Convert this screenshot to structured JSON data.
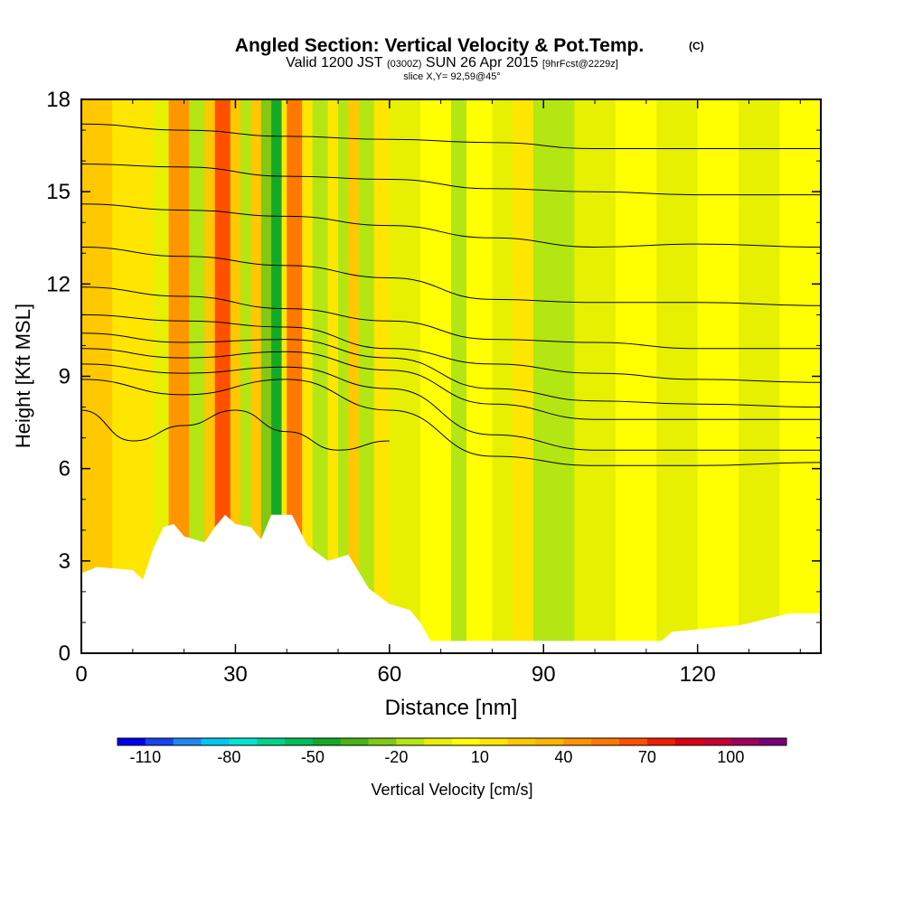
{
  "title": {
    "main": "Angled Section: Vertical Velocity & Pot.Temp.",
    "main_unit": "(C)",
    "valid_prefix": "Valid 1200 JST",
    "valid_utc": "(0300Z)",
    "valid_date": "SUN 26 Apr 2015",
    "forecast": "[9hrFcst@2229z]",
    "slice": "slice X,Y= 92,59@45°"
  },
  "chart_data": {
    "type": "heatmap",
    "xlabel": "Distance [nm]",
    "ylabel": "Height [Kft MSL]",
    "x_range": [
      0,
      144
    ],
    "y_range": [
      0,
      18
    ],
    "x_ticks": [
      0,
      30,
      60,
      90,
      120
    ],
    "y_ticks": [
      0,
      3,
      6,
      9,
      12,
      15,
      18
    ],
    "grid": false,
    "field": {
      "name": "Vertical Velocity",
      "bands": [
        {
          "x": [
            0,
            6
          ],
          "value": 25
        },
        {
          "x": [
            6,
            10
          ],
          "value": 15
        },
        {
          "x": [
            10,
            14
          ],
          "value": 10
        },
        {
          "x": [
            14,
            17
          ],
          "value": -10
        },
        {
          "x": [
            17,
            21
          ],
          "value": 45
        },
        {
          "x": [
            21,
            24
          ],
          "value": -20
        },
        {
          "x": [
            24,
            26
          ],
          "value": 20
        },
        {
          "x": [
            26,
            29
          ],
          "value": 65
        },
        {
          "x": [
            29,
            31
          ],
          "value": 20
        },
        {
          "x": [
            31,
            33
          ],
          "value": -20
        },
        {
          "x": [
            33,
            35
          ],
          "value": 20
        },
        {
          "x": [
            35,
            37
          ],
          "value": -30
        },
        {
          "x": [
            37,
            39
          ],
          "value": -45
        },
        {
          "x": [
            39,
            40
          ],
          "value": 10
        },
        {
          "x": [
            40,
            43
          ],
          "value": 50
        },
        {
          "x": [
            43,
            45
          ],
          "value": 10
        },
        {
          "x": [
            45,
            48
          ],
          "value": -20
        },
        {
          "x": [
            48,
            50
          ],
          "value": 15
        },
        {
          "x": [
            50,
            52
          ],
          "value": -20
        },
        {
          "x": [
            52,
            54
          ],
          "value": 25
        },
        {
          "x": [
            54,
            57
          ],
          "value": -20
        },
        {
          "x": [
            57,
            60
          ],
          "value": 10
        },
        {
          "x": [
            60,
            66
          ],
          "value": -10
        },
        {
          "x": [
            66,
            72
          ],
          "value": 0
        },
        {
          "x": [
            72,
            75
          ],
          "value": -20
        },
        {
          "x": [
            75,
            80
          ],
          "value": 0
        },
        {
          "x": [
            80,
            84
          ],
          "value": -10
        },
        {
          "x": [
            84,
            88
          ],
          "value": 10
        },
        {
          "x": [
            88,
            96
          ],
          "value": -15
        },
        {
          "x": [
            96,
            104
          ],
          "value": -5
        },
        {
          "x": [
            104,
            112
          ],
          "value": 5
        },
        {
          "x": [
            112,
            120
          ],
          "value": -5
        },
        {
          "x": [
            120,
            128
          ],
          "value": 5
        },
        {
          "x": [
            128,
            136
          ],
          "value": -5
        },
        {
          "x": [
            136,
            144
          ],
          "value": 0
        }
      ]
    },
    "contours": [
      {
        "label": "",
        "points": [
          [
            0,
            7.9
          ],
          [
            10,
            6.9
          ],
          [
            20,
            7.4
          ],
          [
            30,
            7.9
          ],
          [
            40,
            7.2
          ],
          [
            50,
            6.6
          ],
          [
            60,
            6.9
          ]
        ]
      },
      {
        "label": "",
        "points": [
          [
            0,
            8.9
          ],
          [
            20,
            8.4
          ],
          [
            40,
            8.9
          ],
          [
            60,
            7.9
          ],
          [
            80,
            6.4
          ],
          [
            100,
            6.1
          ],
          [
            120,
            6.1
          ],
          [
            144,
            6.2
          ]
        ]
      },
      {
        "label": "",
        "points": [
          [
            0,
            9.4
          ],
          [
            20,
            9.1
          ],
          [
            40,
            9.3
          ],
          [
            60,
            8.6
          ],
          [
            80,
            7.1
          ],
          [
            100,
            6.6
          ],
          [
            120,
            6.6
          ],
          [
            144,
            6.6
          ]
        ]
      },
      {
        "label": "",
        "points": [
          [
            0,
            9.9
          ],
          [
            20,
            9.6
          ],
          [
            40,
            9.8
          ],
          [
            60,
            9.2
          ],
          [
            80,
            8.1
          ],
          [
            100,
            7.6
          ],
          [
            120,
            7.6
          ],
          [
            144,
            7.6
          ]
        ]
      },
      {
        "label": "",
        "points": [
          [
            0,
            10.4
          ],
          [
            20,
            10.1
          ],
          [
            40,
            10.2
          ],
          [
            60,
            9.6
          ],
          [
            80,
            8.6
          ],
          [
            100,
            8.2
          ],
          [
            120,
            8.1
          ],
          [
            144,
            8.0
          ]
        ]
      },
      {
        "label": "",
        "points": [
          [
            0,
            11.0
          ],
          [
            20,
            10.8
          ],
          [
            40,
            10.6
          ],
          [
            60,
            9.9
          ],
          [
            80,
            9.4
          ],
          [
            100,
            9.1
          ],
          [
            120,
            8.9
          ],
          [
            144,
            8.8
          ]
        ]
      },
      {
        "label": "",
        "points": [
          [
            0,
            11.9
          ],
          [
            20,
            11.6
          ],
          [
            40,
            11.2
          ],
          [
            60,
            10.8
          ],
          [
            80,
            10.2
          ],
          [
            100,
            10.1
          ],
          [
            120,
            9.9
          ],
          [
            144,
            9.9
          ]
        ]
      },
      {
        "label": "",
        "points": [
          [
            0,
            13.2
          ],
          [
            20,
            12.9
          ],
          [
            40,
            12.6
          ],
          [
            60,
            12.2
          ],
          [
            80,
            11.5
          ],
          [
            100,
            11.4
          ],
          [
            120,
            11.4
          ],
          [
            144,
            11.3
          ]
        ]
      },
      {
        "label": "",
        "points": [
          [
            0,
            14.6
          ],
          [
            20,
            14.4
          ],
          [
            40,
            14.2
          ],
          [
            60,
            13.9
          ],
          [
            80,
            13.5
          ],
          [
            100,
            13.2
          ],
          [
            120,
            13.3
          ],
          [
            144,
            13.2
          ]
        ]
      },
      {
        "label": "",
        "points": [
          [
            0,
            15.9
          ],
          [
            20,
            15.8
          ],
          [
            40,
            15.5
          ],
          [
            60,
            15.4
          ],
          [
            80,
            15.1
          ],
          [
            100,
            15.0
          ],
          [
            120,
            14.9
          ],
          [
            144,
            14.9
          ]
        ]
      },
      {
        "label": "",
        "points": [
          [
            0,
            17.2
          ],
          [
            20,
            17.0
          ],
          [
            40,
            16.8
          ],
          [
            60,
            16.7
          ],
          [
            80,
            16.6
          ],
          [
            100,
            16.4
          ],
          [
            120,
            16.4
          ],
          [
            144,
            16.4
          ]
        ]
      }
    ],
    "terrain": [
      [
        0,
        2.6
      ],
      [
        3,
        2.8
      ],
      [
        10,
        2.7
      ],
      [
        12,
        2.4
      ],
      [
        14,
        3.4
      ],
      [
        16,
        4.1
      ],
      [
        18,
        4.2
      ],
      [
        20,
        3.8
      ],
      [
        24,
        3.6
      ],
      [
        26,
        4.1
      ],
      [
        28,
        4.5
      ],
      [
        30,
        4.2
      ],
      [
        33,
        4.1
      ],
      [
        35,
        3.7
      ],
      [
        37,
        4.5
      ],
      [
        41,
        4.5
      ],
      [
        44,
        3.5
      ],
      [
        48,
        3.0
      ],
      [
        52,
        3.2
      ],
      [
        56,
        2.1
      ],
      [
        60,
        1.6
      ],
      [
        64,
        1.4
      ],
      [
        66,
        1.0
      ],
      [
        68,
        0.4
      ],
      [
        80,
        0.4
      ],
      [
        90,
        0.4
      ],
      [
        100,
        0.4
      ],
      [
        113,
        0.4
      ],
      [
        115,
        0.7
      ],
      [
        128,
        0.9
      ],
      [
        138,
        1.3
      ],
      [
        144,
        1.3
      ]
    ],
    "colorbar": {
      "label": "Vertical Velocity [cm/s]",
      "min": -120,
      "max": 120,
      "step": 10,
      "tick_values": [
        -110,
        -80,
        -50,
        -20,
        10,
        40,
        70,
        100
      ],
      "colors": [
        "#0000f0",
        "#1844f0",
        "#1e88f0",
        "#00c8f0",
        "#00e6d2",
        "#00d28c",
        "#00be5a",
        "#14aa28",
        "#46b414",
        "#82c814",
        "#b4e614",
        "#e6f000",
        "#ffff00",
        "#ffe600",
        "#ffc800",
        "#ffb400",
        "#ff9600",
        "#ff7800",
        "#ff5000",
        "#f01e00",
        "#dc0014",
        "#c80032",
        "#a0005a",
        "#780078"
      ]
    }
  }
}
